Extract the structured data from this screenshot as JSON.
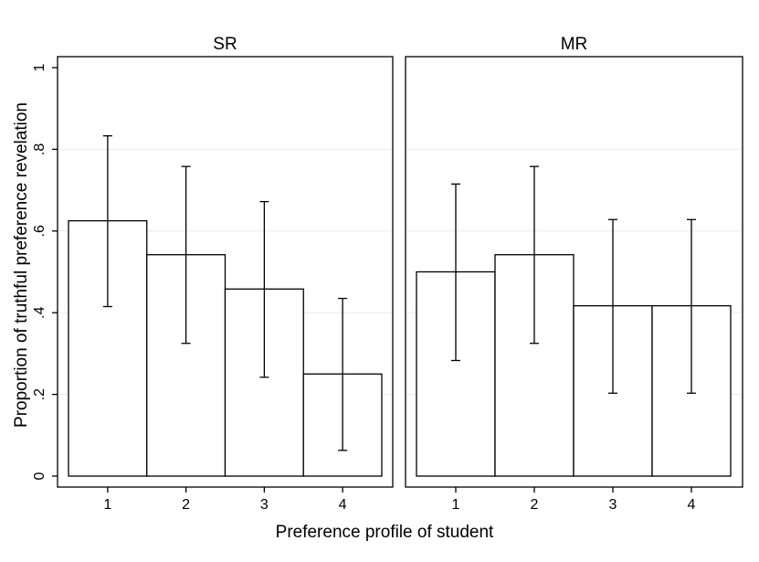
{
  "chart_data": {
    "type": "bar",
    "ylabel": "Proportion of truthful preference revelation",
    "xlabel": "Preference profile of student",
    "ylim": [
      0,
      1
    ],
    "y_ticks": [
      0,
      0.2,
      0.4,
      0.6,
      0.8,
      1
    ],
    "y_tick_labels": [
      "0",
      ".2",
      ".4",
      ".6",
      ".8",
      "1"
    ],
    "categories": [
      "1",
      "2",
      "3",
      "4"
    ],
    "grid": true,
    "panels": [
      {
        "title": "SR",
        "values": [
          0.625,
          0.542,
          0.458,
          0.25
        ],
        "ci_lower": [
          0.415,
          0.325,
          0.242,
          0.063
        ],
        "ci_upper": [
          0.833,
          0.758,
          0.672,
          0.435
        ]
      },
      {
        "title": "MR",
        "values": [
          0.5,
          0.542,
          0.417,
          0.417
        ],
        "ci_lower": [
          0.283,
          0.325,
          0.203,
          0.203
        ],
        "ci_upper": [
          0.715,
          0.758,
          0.628,
          0.628
        ]
      }
    ]
  }
}
